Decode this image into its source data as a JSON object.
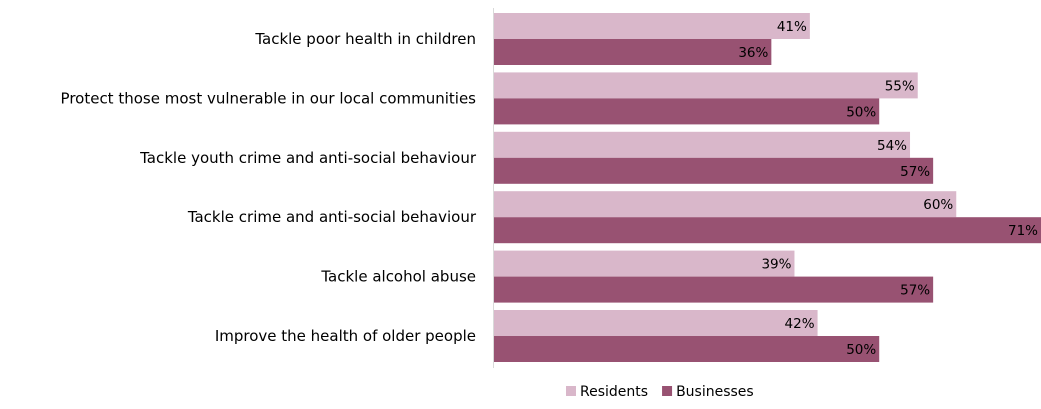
{
  "chart_data": {
    "type": "bar",
    "orientation": "horizontal",
    "categories": [
      "Tackle poor health in children",
      "Protect those most vulnerable in our local communities",
      "Tackle youth crime and anti-social behaviour",
      "Tackle crime and anti-social behaviour",
      "Tackle alcohol abuse",
      "Improve the health of older people"
    ],
    "series": [
      {
        "name": "Residents",
        "color": "#D9B7CA",
        "values": [
          41,
          55,
          54,
          60,
          39,
          42
        ]
      },
      {
        "name": "Businesses",
        "color": "#985272",
        "values": [
          36,
          50,
          57,
          71,
          57,
          50
        ]
      }
    ],
    "value_suffix": "%",
    "xlim": [
      0,
      71
    ],
    "grid": false,
    "legend_position": "bottom"
  }
}
